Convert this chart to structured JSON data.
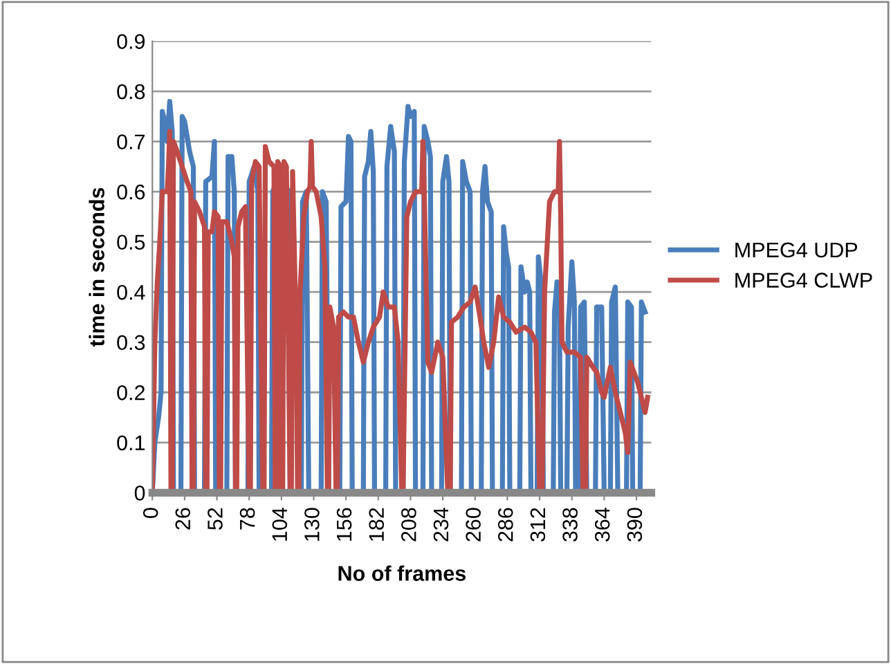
{
  "chart_data": {
    "type": "line",
    "xlabel": "No of frames",
    "ylabel": "time in seconds",
    "xlim": [
      0,
      402
    ],
    "xticks": [
      0,
      26,
      52,
      78,
      104,
      130,
      156,
      182,
      208,
      234,
      260,
      286,
      312,
      338,
      364,
      390
    ],
    "ylim": [
      0,
      0.9
    ],
    "yticks": [
      0,
      0.1,
      0.2,
      0.3,
      0.4,
      0.5,
      0.6,
      0.7,
      0.8,
      0.9
    ],
    "grid": "y",
    "legend": "right",
    "marker": "none",
    "line_style": "solid",
    "series": [
      {
        "name": "MPEG4 UDP",
        "color": "#4a7ebb",
        "x": [
          0,
          2,
          5,
          7,
          8,
          10,
          12,
          14,
          16,
          17,
          23,
          24,
          26,
          30,
          33,
          34,
          42,
          43,
          48,
          50,
          51,
          60,
          61,
          64,
          66,
          67,
          77,
          78,
          82,
          85,
          86,
          96,
          97,
          100,
          103,
          104,
          105,
          110,
          111,
          120,
          121,
          124,
          126,
          136,
          137,
          140,
          141,
          142,
          151,
          152,
          156,
          158,
          160,
          161,
          170,
          171,
          174,
          176,
          178,
          179,
          188,
          189,
          192,
          195,
          196,
          202,
          203,
          206,
          208,
          211,
          212,
          218,
          219,
          222,
          224,
          225,
          233,
          234,
          237,
          239,
          240,
          249,
          250,
          253,
          256,
          257,
          265,
          266,
          268,
          270,
          273,
          274,
          282,
          283,
          285,
          287,
          288,
          296,
          297,
          300,
          302,
          304,
          305,
          310,
          311,
          314,
          315,
          323,
          324,
          326,
          328,
          329,
          334,
          335,
          338,
          340,
          341,
          344,
          345,
          348,
          350,
          357,
          358,
          362,
          364,
          369,
          370,
          373,
          375,
          382,
          383,
          386,
          387,
          393,
          394,
          397
        ],
        "values": [
          0,
          0.1,
          0.15,
          0.2,
          0.76,
          0.74,
          0.7,
          0.78,
          0.72,
          0,
          0,
          0.75,
          0.74,
          0.68,
          0.65,
          0,
          0,
          0.62,
          0.63,
          0.7,
          0,
          0,
          0.67,
          0.67,
          0.6,
          0,
          0,
          0.62,
          0.65,
          0.6,
          0,
          0,
          0.6,
          0.62,
          null,
          0,
          0.62,
          0.6,
          0,
          0,
          0.58,
          0.6,
          0,
          0,
          0.6,
          0.58,
          0.3,
          0,
          0,
          0.57,
          0.58,
          0.71,
          0.7,
          0,
          0,
          0.63,
          0.66,
          0.72,
          0.64,
          0,
          0,
          0.65,
          0.73,
          0.68,
          0,
          0,
          0.66,
          0.77,
          0.75,
          0.76,
          0,
          0,
          0.73,
          0.7,
          0.67,
          0,
          0,
          0.62,
          0.67,
          0.62,
          0,
          0,
          0.66,
          0.62,
          0.6,
          0,
          0,
          0.6,
          0.65,
          0.58,
          0.56,
          0,
          0,
          0.53,
          0.48,
          0.45,
          0,
          0,
          0.45,
          0.4,
          0.42,
          0.4,
          0,
          0,
          0.47,
          0.4,
          0,
          0,
          0.36,
          0.42,
          0.36,
          0,
          0,
          0.33,
          0.46,
          0.38,
          0,
          0,
          0.37,
          0.38,
          0,
          0,
          0.37,
          0.37,
          0,
          0,
          0.38,
          0.41,
          0,
          0,
          0.38,
          0.37,
          0,
          0,
          0.38,
          0.36
        ]
      },
      {
        "name": "MPEG4 CLWP",
        "color": "#be4b48",
        "x": [
          0,
          2,
          4,
          6,
          8,
          12,
          13,
          14,
          15,
          16,
          17,
          20,
          24,
          28,
          31,
          32,
          33,
          34,
          38,
          42,
          43,
          44,
          45,
          48,
          50,
          53,
          54,
          55,
          56,
          60,
          64,
          66,
          67,
          68,
          69,
          72,
          75,
          78,
          79,
          80,
          83,
          86,
          89,
          90,
          91,
          94,
          98,
          99,
          100,
          101,
          103,
          104,
          105,
          106,
          108,
          111,
          112,
          113,
          116,
          117,
          118,
          119,
          122,
          125,
          127,
          128,
          129,
          132,
          136,
          139,
          141,
          142,
          143,
          146,
          148,
          149,
          150,
          154,
          158,
          162,
          166,
          170,
          174,
          178,
          183,
          186,
          190,
          195,
          198,
          201,
          202,
          205,
          208,
          212,
          217,
          218,
          219,
          222,
          225,
          230,
          234,
          238,
          240,
          241,
          246,
          251,
          256,
          260,
          264,
          267,
          271,
          275,
          279,
          283,
          288,
          293,
          300,
          305,
          309,
          312,
          314,
          316,
          320,
          324,
          327,
          328,
          329,
          330,
          334,
          340,
          345,
          347,
          349,
          350,
          355,
          358,
          362,
          364,
          369,
          373,
          377,
          381,
          383,
          385,
          388,
          391,
          394,
          397,
          399
        ],
        "values": [
          0,
          0.3,
          0.42,
          0.5,
          0.6,
          0.6,
          0.65,
          0.72,
          0,
          0,
          0.7,
          0.68,
          0.65,
          0.62,
          0.6,
          0,
          0,
          0.58,
          0.56,
          0.53,
          0,
          0,
          0.52,
          0.52,
          0.56,
          0.55,
          0,
          0,
          0.54,
          0.54,
          0.5,
          0.47,
          0,
          0,
          0.53,
          0.56,
          0.57,
          0,
          0,
          0.62,
          0.66,
          0.65,
          0,
          0,
          0.69,
          0.66,
          0.65,
          0,
          0,
          0.66,
          0.65,
          0,
          0,
          0.66,
          0.65,
          0,
          0,
          0.64,
          0.3,
          0,
          0,
          0.4,
          0.55,
          0.6,
          0.61,
          0.7,
          0.61,
          0.6,
          0.55,
          0.45,
          0,
          0,
          0.37,
          0.33,
          0,
          0,
          0.35,
          0.36,
          0.35,
          0.35,
          0.3,
          0.26,
          0.3,
          0.33,
          0.35,
          0.4,
          0.37,
          0.37,
          0.3,
          0,
          0,
          0.55,
          0.58,
          0.6,
          0.6,
          0.7,
          0.6,
          0.26,
          0.24,
          0.3,
          0.27,
          0,
          0,
          0.34,
          0.35,
          0.37,
          0.38,
          0.41,
          0.35,
          0.3,
          0.25,
          0.3,
          0.39,
          0.35,
          0.34,
          0.32,
          0.33,
          0.32,
          0.3,
          0,
          0,
          0.4,
          0.58,
          0.6,
          0.6,
          0.7,
          0.55,
          0.3,
          0.28,
          0.28,
          0.27,
          0,
          0,
          0.27,
          0.25,
          0.24,
          0.2,
          0.19,
          0.25,
          0.2,
          0.16,
          0.12,
          0.08,
          0.26,
          0.24,
          0.22,
          0.19,
          0.16,
          0.19
        ]
      }
    ]
  }
}
